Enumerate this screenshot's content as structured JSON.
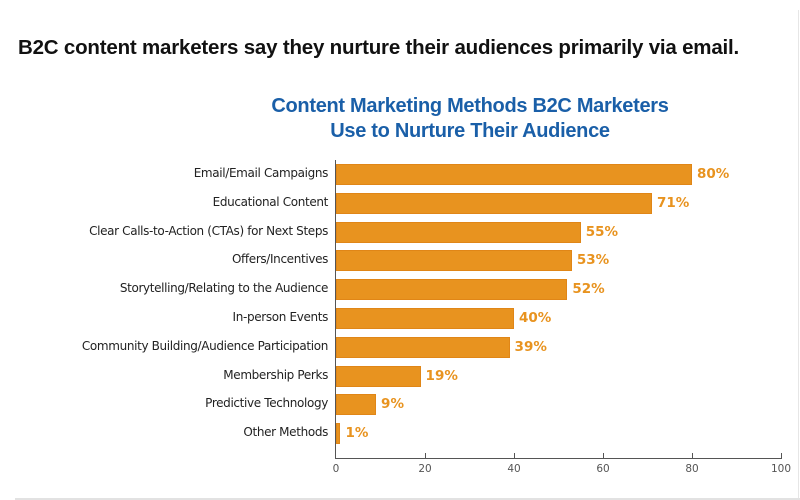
{
  "headline": "B2C content marketers say they nurture their audiences primarily via email.",
  "chart_data": {
    "type": "bar",
    "orientation": "horizontal",
    "title": "Content Marketing Methods B2C Marketers Use to Nurture Their Audience",
    "title_lines": [
      "Content Marketing Methods B2C Marketers",
      "Use to Nurture Their Audience"
    ],
    "xlabel": "",
    "ylabel": "",
    "xlim": [
      0,
      100
    ],
    "x_ticks": [
      0,
      20,
      40,
      60,
      80,
      100
    ],
    "grid": false,
    "legend": null,
    "categories": [
      "Email/Email Campaigns",
      "Educational Content",
      "Clear Calls-to-Action (CTAs) for Next Steps",
      "Offers/Incentives",
      "Storytelling/Relating to the Audience",
      "In-person Events",
      "Community Building/Audience Participation",
      "Membership Perks",
      "Predictive Technology",
      "Other Methods"
    ],
    "values": [
      80,
      71,
      55,
      53,
      52,
      40,
      39,
      19,
      9,
      1
    ],
    "value_labels": [
      "80%",
      "71%",
      "55%",
      "53%",
      "52%",
      "40%",
      "39%",
      "19%",
      "9%",
      "1%"
    ],
    "colors": {
      "bar": "#e8931f",
      "value_label": "#e8931f",
      "title": "#1a5fa8",
      "axis": "#555555"
    }
  }
}
